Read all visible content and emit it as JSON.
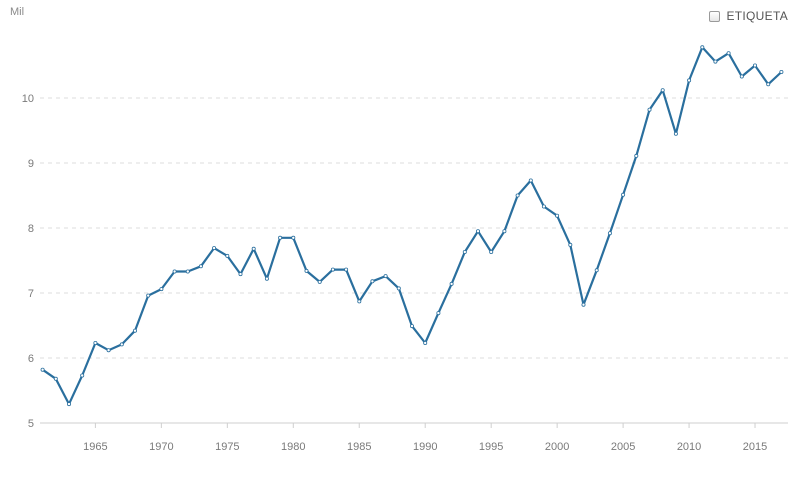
{
  "legend": {
    "checkbox_label": "ETIQUETA",
    "checked": false
  },
  "chart_data": {
    "type": "line",
    "title": "",
    "xlabel": "",
    "ylabel": "",
    "unit_label": "Mil",
    "x": [
      1961,
      1962,
      1963,
      1964,
      1965,
      1966,
      1967,
      1968,
      1969,
      1970,
      1971,
      1972,
      1973,
      1974,
      1975,
      1976,
      1977,
      1978,
      1979,
      1980,
      1981,
      1982,
      1983,
      1984,
      1985,
      1986,
      1987,
      1988,
      1989,
      1990,
      1991,
      1992,
      1993,
      1994,
      1995,
      1996,
      1997,
      1998,
      1999,
      2000,
      2001,
      2002,
      2003,
      2004,
      2005,
      2006,
      2007,
      2008,
      2009,
      2010,
      2011,
      2012,
      2013,
      2014,
      2015,
      2016,
      2017
    ],
    "series": [
      {
        "color": "#2a6f9e",
        "values": [
          5.82,
          5.68,
          5.29,
          5.73,
          6.23,
          6.12,
          6.21,
          6.42,
          6.96,
          7.06,
          7.33,
          7.33,
          7.41,
          7.69,
          7.57,
          7.29,
          7.68,
          7.22,
          7.85,
          7.85,
          7.34,
          7.17,
          7.36,
          7.36,
          6.87,
          7.18,
          7.26,
          7.07,
          6.49,
          6.23,
          6.69,
          7.14,
          7.63,
          7.95,
          7.63,
          7.95,
          8.5,
          8.73,
          8.33,
          8.19,
          7.74,
          6.82,
          7.35,
          7.92,
          8.51,
          9.11,
          9.82,
          10.12,
          9.45,
          10.27,
          10.78,
          10.56,
          10.69,
          10.33,
          10.5,
          10.21,
          10.4
        ]
      }
    ],
    "ylim": [
      5,
      11.2
    ],
    "xlim": [
      1960.8,
      2017.5
    ],
    "yticks": [
      5,
      6,
      7,
      8,
      9,
      10
    ],
    "xticks": [
      1965,
      1970,
      1975,
      1980,
      1985,
      1990,
      1995,
      2000,
      2005,
      2010,
      2015
    ],
    "grid": "horizontal-dashed",
    "legend_position": "top-right"
  }
}
